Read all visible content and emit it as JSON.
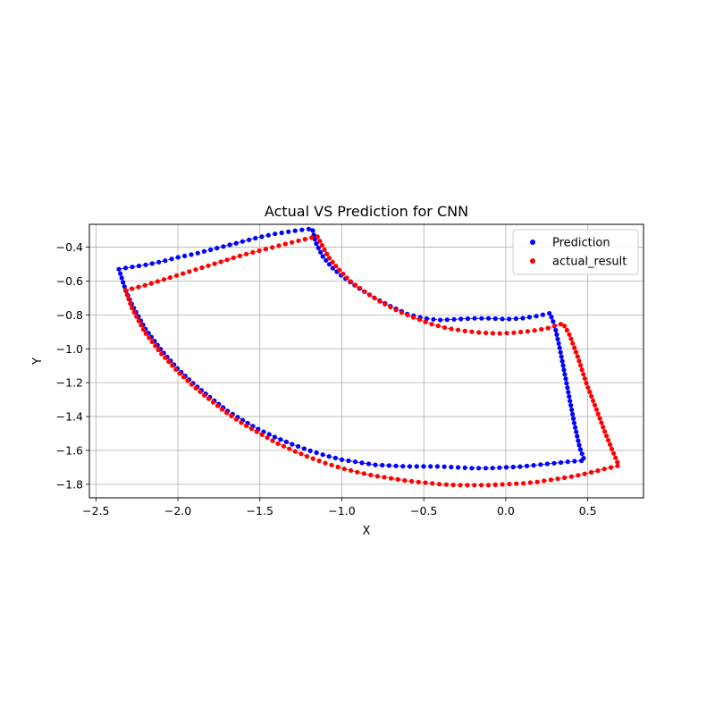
{
  "chart_data": {
    "type": "scatter",
    "title": "Actual VS Prediction for CNN",
    "xlabel": "X",
    "ylabel": "Y",
    "xlim": [
      -2.54,
      0.84
    ],
    "ylim": [
      -1.88,
      -0.265
    ],
    "xticks": [
      -2.5,
      -2.0,
      -1.5,
      -1.0,
      -0.5,
      0.0,
      0.5
    ],
    "xtick_labels": [
      "−2.5",
      "−2.0",
      "−1.5",
      "−1.0",
      "−0.5",
      "0.0",
      "0.5"
    ],
    "yticks": [
      -1.8,
      -1.6,
      -1.4,
      -1.2,
      -1.0,
      -0.8,
      -0.6,
      -0.4
    ],
    "ytick_labels": [
      "−1.8",
      "−1.6",
      "−1.4",
      "−1.2",
      "−1.0",
      "−0.8",
      "−0.6",
      "−0.4"
    ],
    "grid": true,
    "legend_position": "upper-right",
    "series": [
      {
        "name": "Prediction",
        "color": "#0000ff",
        "outline": [
          [
            -2.36,
            -0.53
          ],
          [
            -2.3,
            -0.52
          ],
          [
            -2.2,
            -0.505
          ],
          [
            -2.1,
            -0.485
          ],
          [
            -2.0,
            -0.46
          ],
          [
            -1.9,
            -0.44
          ],
          [
            -1.8,
            -0.415
          ],
          [
            -1.7,
            -0.39
          ],
          [
            -1.6,
            -0.365
          ],
          [
            -1.5,
            -0.34
          ],
          [
            -1.4,
            -0.32
          ],
          [
            -1.3,
            -0.305
          ],
          [
            -1.18,
            -0.29
          ],
          [
            -1.16,
            -0.37
          ],
          [
            -1.12,
            -0.45
          ],
          [
            -1.06,
            -0.52
          ],
          [
            -1.0,
            -0.57
          ],
          [
            -0.9,
            -0.64
          ],
          [
            -0.8,
            -0.7
          ],
          [
            -0.7,
            -0.75
          ],
          [
            -0.6,
            -0.795
          ],
          [
            -0.5,
            -0.82
          ],
          [
            -0.4,
            -0.83
          ],
          [
            -0.3,
            -0.825
          ],
          [
            -0.2,
            -0.82
          ],
          [
            -0.1,
            -0.82
          ],
          [
            0.0,
            -0.825
          ],
          [
            0.1,
            -0.82
          ],
          [
            0.2,
            -0.805
          ],
          [
            0.27,
            -0.79
          ],
          [
            0.3,
            -0.87
          ],
          [
            0.33,
            -1.0
          ],
          [
            0.36,
            -1.15
          ],
          [
            0.39,
            -1.3
          ],
          [
            0.42,
            -1.45
          ],
          [
            0.45,
            -1.58
          ],
          [
            0.48,
            -1.66
          ],
          [
            0.4,
            -1.665
          ],
          [
            0.3,
            -1.675
          ],
          [
            0.2,
            -1.685
          ],
          [
            0.1,
            -1.695
          ],
          [
            0.0,
            -1.7
          ],
          [
            -0.1,
            -1.705
          ],
          [
            -0.2,
            -1.705
          ],
          [
            -0.3,
            -1.7
          ],
          [
            -0.4,
            -1.695
          ],
          [
            -0.5,
            -1.695
          ],
          [
            -0.6,
            -1.695
          ],
          [
            -0.7,
            -1.69
          ],
          [
            -0.8,
            -1.685
          ],
          [
            -0.9,
            -1.67
          ],
          [
            -1.0,
            -1.655
          ],
          [
            -1.1,
            -1.63
          ],
          [
            -1.2,
            -1.6
          ],
          [
            -1.3,
            -1.565
          ],
          [
            -1.4,
            -1.525
          ],
          [
            -1.5,
            -1.48
          ],
          [
            -1.6,
            -1.425
          ],
          [
            -1.7,
            -1.365
          ],
          [
            -1.8,
            -1.29
          ],
          [
            -1.9,
            -1.21
          ],
          [
            -2.0,
            -1.12
          ],
          [
            -2.1,
            -1.01
          ],
          [
            -2.2,
            -0.88
          ],
          [
            -2.28,
            -0.74
          ],
          [
            -2.32,
            -0.65
          ],
          [
            -2.36,
            -0.53
          ]
        ],
        "n_points": 200
      },
      {
        "name": "actual_result",
        "color": "#ff0000",
        "outline": [
          [
            -2.32,
            -0.655
          ],
          [
            -2.2,
            -0.625
          ],
          [
            -2.1,
            -0.595
          ],
          [
            -2.0,
            -0.565
          ],
          [
            -1.9,
            -0.535
          ],
          [
            -1.8,
            -0.505
          ],
          [
            -1.7,
            -0.475
          ],
          [
            -1.6,
            -0.445
          ],
          [
            -1.5,
            -0.42
          ],
          [
            -1.4,
            -0.395
          ],
          [
            -1.3,
            -0.37
          ],
          [
            -1.15,
            -0.335
          ],
          [
            -1.12,
            -0.39
          ],
          [
            -1.08,
            -0.46
          ],
          [
            -1.02,
            -0.53
          ],
          [
            -0.95,
            -0.6
          ],
          [
            -0.85,
            -0.67
          ],
          [
            -0.75,
            -0.73
          ],
          [
            -0.65,
            -0.78
          ],
          [
            -0.55,
            -0.82
          ],
          [
            -0.45,
            -0.855
          ],
          [
            -0.35,
            -0.88
          ],
          [
            -0.25,
            -0.895
          ],
          [
            -0.15,
            -0.905
          ],
          [
            -0.05,
            -0.91
          ],
          [
            0.05,
            -0.905
          ],
          [
            0.15,
            -0.895
          ],
          [
            0.25,
            -0.88
          ],
          [
            0.35,
            -0.85
          ],
          [
            0.39,
            -0.92
          ],
          [
            0.44,
            -1.05
          ],
          [
            0.49,
            -1.2
          ],
          [
            0.55,
            -1.35
          ],
          [
            0.6,
            -1.48
          ],
          [
            0.65,
            -1.6
          ],
          [
            0.69,
            -1.69
          ],
          [
            0.6,
            -1.71
          ],
          [
            0.5,
            -1.735
          ],
          [
            0.4,
            -1.755
          ],
          [
            0.3,
            -1.77
          ],
          [
            0.2,
            -1.785
          ],
          [
            0.1,
            -1.795
          ],
          [
            0.0,
            -1.8
          ],
          [
            -0.1,
            -1.805
          ],
          [
            -0.2,
            -1.805
          ],
          [
            -0.3,
            -1.805
          ],
          [
            -0.4,
            -1.8
          ],
          [
            -0.5,
            -1.79
          ],
          [
            -0.6,
            -1.78
          ],
          [
            -0.7,
            -1.765
          ],
          [
            -0.8,
            -1.75
          ],
          [
            -0.9,
            -1.73
          ],
          [
            -1.0,
            -1.705
          ],
          [
            -1.1,
            -1.675
          ],
          [
            -1.2,
            -1.64
          ],
          [
            -1.3,
            -1.6
          ],
          [
            -1.4,
            -1.555
          ],
          [
            -1.5,
            -1.5
          ],
          [
            -1.6,
            -1.445
          ],
          [
            -1.7,
            -1.38
          ],
          [
            -1.8,
            -1.305
          ],
          [
            -1.9,
            -1.225
          ],
          [
            -2.0,
            -1.135
          ],
          [
            -2.1,
            -1.03
          ],
          [
            -2.2,
            -0.905
          ],
          [
            -2.28,
            -0.76
          ],
          [
            -2.32,
            -0.655
          ]
        ],
        "n_points": 200
      }
    ]
  }
}
